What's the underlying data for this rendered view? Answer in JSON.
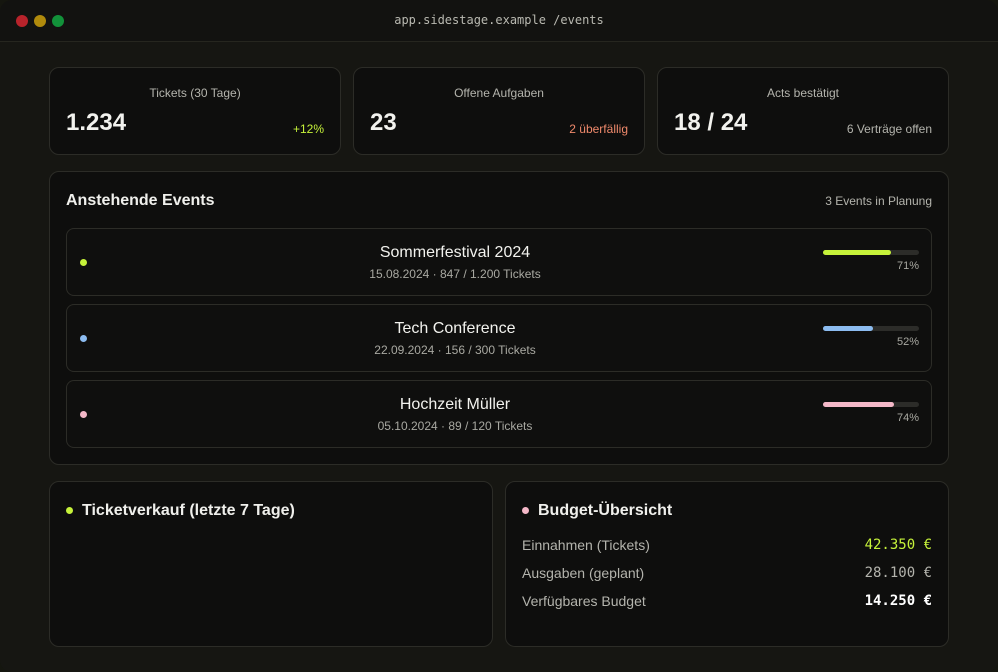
{
  "window": {
    "url": "app.sidestage.example /events"
  },
  "stats": [
    {
      "label": "Tickets (30 Tage)",
      "value": "1.234",
      "note": "+12%",
      "note_color": "#c6f23a"
    },
    {
      "label": "Offene Aufgaben",
      "value": "23",
      "note": "2 überfällig",
      "note_color": "#f08a6c"
    },
    {
      "label": "Acts bestätigt",
      "value": "18 / 24",
      "note": "6 Verträge offen",
      "note_color": "#b4b4ad"
    }
  ],
  "events": {
    "title": "Anstehende Events",
    "meta": "3 Events in Planung",
    "items": [
      {
        "name": "Sommerfestival 2024",
        "meta": "15.08.2024 · 847 / 1.200 Tickets",
        "progress": 0.71,
        "percent": "71%",
        "color": "#c6f23a"
      },
      {
        "name": "Tech Conference",
        "meta": "22.09.2024 · 156 / 300 Tickets",
        "progress": 0.52,
        "percent": "52%",
        "color": "#8cbcf0"
      },
      {
        "name": "Hochzeit Müller",
        "meta": "05.10.2024 · 89 / 120 Tickets",
        "progress": 0.74,
        "percent": "74%",
        "color": "#f4b8c8"
      }
    ]
  },
  "tickets_panel": {
    "title": "Ticketverkauf (letzte 7 Tage)",
    "color": "#c6f23a"
  },
  "budget_panel": {
    "title": "Budget-Übersicht",
    "color": "#f4b8c8",
    "rows": [
      {
        "label": "Einnahmen (Tickets)",
        "value": "42.350 €",
        "color": "#c6f23a",
        "bold": false
      },
      {
        "label": "Ausgaben (geplant)",
        "value": "28.100 €",
        "color": "#b4b4ad",
        "bold": false
      },
      {
        "label": "Verfügbares Budget",
        "value": "14.250 €",
        "color": "#ffffff",
        "bold": true
      }
    ]
  }
}
